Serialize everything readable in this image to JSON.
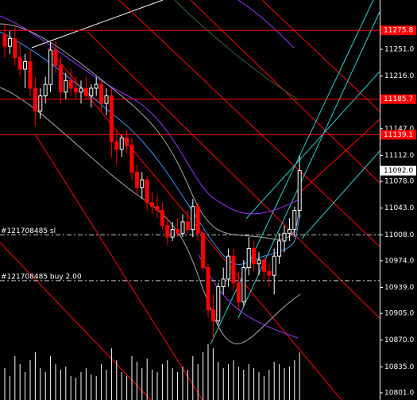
{
  "chart_data": {
    "type": "candlestick",
    "ylim": [
      10791.6,
      11315.6
    ],
    "yticks": [
      {
        "value": 11251,
        "label": "11251.0"
      },
      {
        "value": 11216,
        "label": "11216.0"
      },
      {
        "value": 11147,
        "label": "11147.0"
      },
      {
        "value": 11112,
        "label": "11112.0"
      },
      {
        "value": 11078,
        "label": "11078.0"
      },
      {
        "value": 11043,
        "label": "11043.0"
      },
      {
        "value": 11008,
        "label": "11008.0"
      },
      {
        "value": 10974,
        "label": "10974.0"
      },
      {
        "value": 10939,
        "label": "10939.0"
      },
      {
        "value": 10905,
        "label": "10905.0"
      },
      {
        "value": 10870,
        "label": "10870.0"
      },
      {
        "value": 10835,
        "label": "10835.0"
      },
      {
        "value": 10801,
        "label": "10801.0"
      }
    ],
    "levels": [
      11275.8,
      11185.7,
      11139.1
    ],
    "level_color": "#ff0000",
    "current_price": {
      "value": 11092,
      "label": "11092.0"
    },
    "orders": [
      {
        "label": "#121708485 sl",
        "value": 11008
      },
      {
        "label": "#121708485 buy 2.00",
        "value": 10948
      }
    ],
    "up_color": "#ffffff",
    "down_color": "#ff0000",
    "candles": [
      [
        11270,
        11285,
        11240,
        11255
      ],
      [
        11255,
        11275,
        11245,
        11265
      ],
      [
        11265,
        11280,
        11230,
        11240
      ],
      [
        11240,
        11260,
        11215,
        11225
      ],
      [
        11225,
        11245,
        11200,
        11235
      ],
      [
        11235,
        11250,
        11190,
        11200
      ],
      [
        11200,
        11215,
        11150,
        11170
      ],
      [
        11170,
        11200,
        11160,
        11190
      ],
      [
        11190,
        11215,
        11180,
        11205
      ],
      [
        11205,
        11260,
        11195,
        11250
      ],
      [
        11250,
        11262,
        11220,
        11230
      ],
      [
        11230,
        11240,
        11180,
        11195
      ],
      [
        11195,
        11220,
        11185,
        11210
      ],
      [
        11210,
        11225,
        11190,
        11200
      ],
      [
        11200,
        11215,
        11185,
        11195
      ],
      [
        11195,
        11210,
        11180,
        11200
      ],
      [
        11200,
        11215,
        11185,
        11190
      ],
      [
        11190,
        11205,
        11175,
        11200
      ],
      [
        11200,
        11215,
        11190,
        11205
      ],
      [
        11205,
        11210,
        11170,
        11180
      ],
      [
        11180,
        11200,
        11165,
        11190
      ],
      [
        11190,
        11200,
        11110,
        11130
      ],
      [
        11130,
        11145,
        11100,
        11120
      ],
      [
        11120,
        11140,
        11110,
        11135
      ],
      [
        11135,
        11145,
        11115,
        11125
      ],
      [
        11125,
        11135,
        11080,
        11090
      ],
      [
        11090,
        11100,
        11060,
        11070
      ],
      [
        11070,
        11090,
        11055,
        11080
      ],
      [
        11080,
        11085,
        11040,
        11050
      ],
      [
        11050,
        11065,
        11035,
        11045
      ],
      [
        11045,
        11060,
        11030,
        11040
      ],
      [
        11040,
        11050,
        11015,
        11020
      ],
      [
        11020,
        11030,
        10995,
        11005
      ],
      [
        11005,
        11025,
        11000,
        11015
      ],
      [
        11015,
        11030,
        11005,
        11010
      ],
      [
        11010,
        11035,
        11005,
        11025
      ],
      [
        11025,
        11040,
        11010,
        11015
      ],
      [
        11015,
        11055,
        11005,
        11045
      ],
      [
        11045,
        11050,
        11000,
        11010
      ],
      [
        11010,
        11015,
        10960,
        10965
      ],
      [
        10965,
        10970,
        10900,
        10910
      ],
      [
        10910,
        10930,
        10870,
        10895
      ],
      [
        10895,
        10945,
        10890,
        10940
      ],
      [
        10940,
        10965,
        10930,
        10950
      ],
      [
        10950,
        10990,
        10940,
        10980
      ],
      [
        10980,
        10990,
        10935,
        10945
      ],
      [
        10945,
        10960,
        10910,
        10920
      ],
      [
        10920,
        10975,
        10915,
        10965
      ],
      [
        10965,
        11005,
        10955,
        10990
      ],
      [
        10990,
        11000,
        10960,
        10970
      ],
      [
        10970,
        10985,
        10955,
        10975
      ],
      [
        10975,
        10980,
        10950,
        10960
      ],
      [
        10960,
        10970,
        10940,
        10955
      ],
      [
        10955,
        10990,
        10930,
        10980
      ],
      [
        10980,
        11010,
        10970,
        11000
      ],
      [
        11000,
        11020,
        10985,
        11010
      ],
      [
        11010,
        11030,
        11000,
        11015
      ],
      [
        11015,
        11045,
        11005,
        11040
      ],
      [
        11040,
        11112,
        11030,
        11092
      ]
    ],
    "volumes": [
      40,
      30,
      55,
      45,
      35,
      50,
      60,
      40,
      35,
      55,
      45,
      38,
      42,
      30,
      28,
      35,
      40,
      32,
      30,
      45,
      38,
      65,
      50,
      35,
      30,
      55,
      48,
      40,
      52,
      38,
      35,
      45,
      50,
      40,
      35,
      42,
      38,
      55,
      45,
      60,
      70,
      65,
      48,
      40,
      45,
      50,
      42,
      38,
      45,
      40,
      35,
      30,
      38,
      48,
      45,
      40,
      42,
      50,
      60
    ]
  }
}
